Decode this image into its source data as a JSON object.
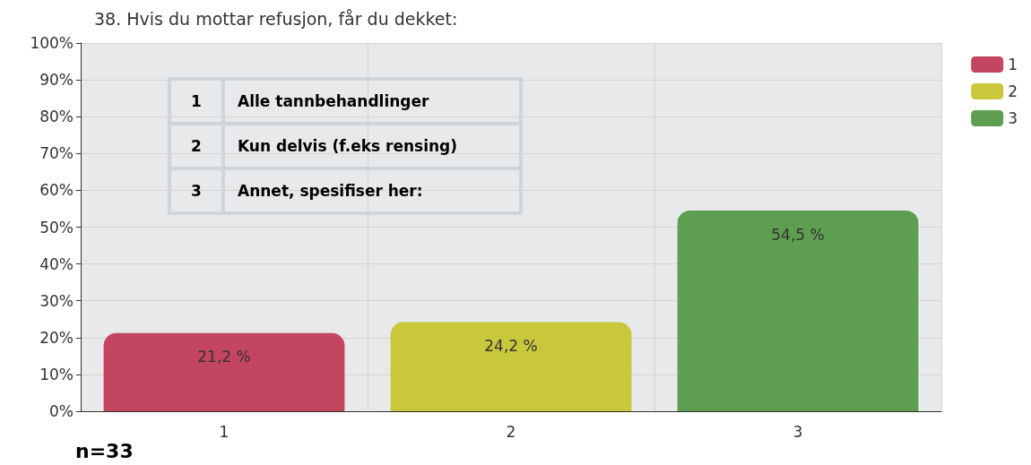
{
  "chart_data": {
    "type": "bar",
    "title": "38. Hvis du mottar refusjon, får du dekket:",
    "categories": [
      "1",
      "2",
      "3"
    ],
    "series": [
      {
        "name": "1",
        "color": "#c4455f",
        "values": [
          21.2,
          null,
          null
        ],
        "value_labels": [
          "21,2 %",
          null,
          null
        ]
      },
      {
        "name": "2",
        "color": "#c9c83c",
        "values": [
          null,
          24.2,
          null
        ],
        "value_labels": [
          null,
          "24,2 %",
          null
        ]
      },
      {
        "name": "3",
        "color": "#5e9e50",
        "values": [
          null,
          null,
          54.5
        ],
        "value_labels": [
          null,
          null,
          "54,5 %"
        ]
      }
    ],
    "stacked": true,
    "ylim": [
      0,
      100
    ],
    "yticks": [
      {
        "value": 0,
        "label": "0%"
      },
      {
        "value": 10,
        "label": "10%"
      },
      {
        "value": 20,
        "label": "20%"
      },
      {
        "value": 30,
        "label": "30%"
      },
      {
        "value": 40,
        "label": "40%"
      },
      {
        "value": 50,
        "label": "50%"
      },
      {
        "value": 60,
        "label": "60%"
      },
      {
        "value": 70,
        "label": "70%"
      },
      {
        "value": 80,
        "label": "80%"
      },
      {
        "value": 90,
        "label": "90%"
      },
      {
        "value": 100,
        "label": "100%"
      }
    ],
    "grid": true,
    "legend": "top right",
    "annotations": [
      "1 Alle tannbehandlinger",
      "2 Kun delvis (f.eks rensing)",
      "3 Annet, spesifiser her:",
      "n=33"
    ]
  }
}
